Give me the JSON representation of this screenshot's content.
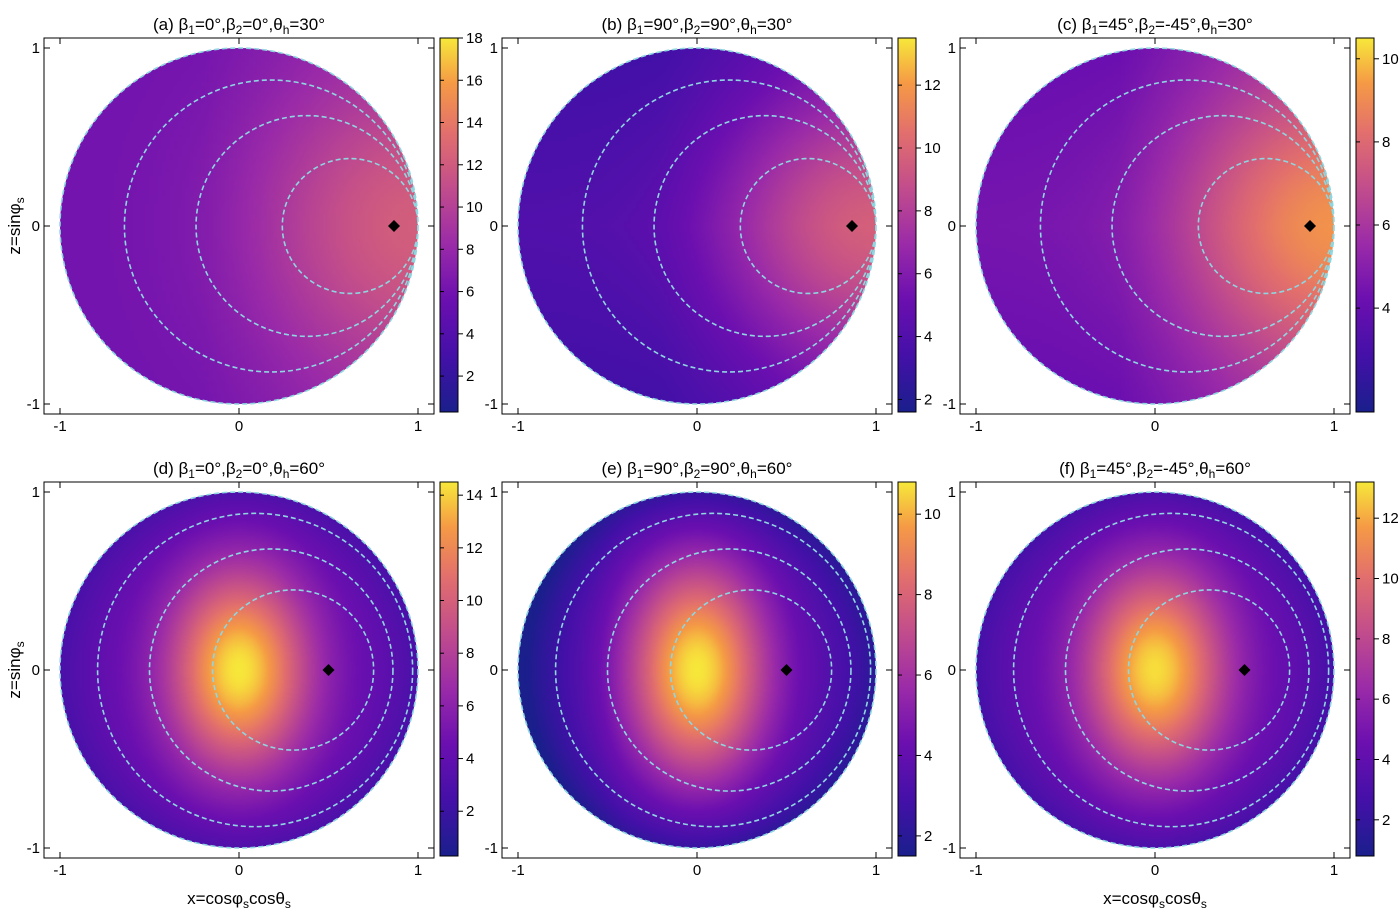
{
  "figure": {
    "ylabel": "z=sinφs",
    "xlabel": "x=cosφscosθs"
  },
  "chart_data": [
    {
      "type": "heatmap",
      "panel": "a",
      "title": "(a) β1=0°,β2=0°,θh=30°",
      "title_parts": {
        "prefix": "(a) β",
        "s1": "1",
        "m1": "=0°,β",
        "s2": "2",
        "m2": "=0°,θ",
        "s3": "h",
        "m3": "=30°"
      },
      "xlim": [
        -1,
        1
      ],
      "ylim": [
        -1,
        1
      ],
      "xticks": [
        -1,
        0,
        1
      ],
      "yticks": [
        -1,
        0,
        1
      ],
      "marker": {
        "x": 0.866,
        "z": 0
      },
      "contours": [
        {
          "cx": 0.621,
          "r": 0.379
        },
        {
          "cx": 0.38,
          "r": 0.62
        },
        {
          "cx": 0.18,
          "r": 0.82
        }
      ],
      "colorbar": {
        "min": 0.3,
        "max": 18,
        "ticks": [
          2,
          4,
          6,
          8,
          10,
          12,
          14,
          16,
          18
        ]
      },
      "field": {
        "bias": 6,
        "amp": 4.5,
        "peak": 0.35,
        "sigma": 0.6,
        "zs": 0.0
      }
    },
    {
      "type": "heatmap",
      "panel": "b",
      "title": "(b) β1=90°,β2=90°,θh=30°",
      "title_parts": {
        "prefix": "(b) β",
        "s1": "1",
        "m1": "=90°,β",
        "s2": "2",
        "m2": "=90°,θ",
        "s3": "h",
        "m3": "=30°"
      },
      "xlim": [
        -1,
        1
      ],
      "ylim": [
        -1,
        1
      ],
      "xticks": [
        -1,
        0,
        1
      ],
      "yticks": [
        -1,
        0,
        1
      ],
      "marker": {
        "x": 0.866,
        "z": 0
      },
      "contours": [
        {
          "cx": 0.621,
          "r": 0.379
        },
        {
          "cx": 0.38,
          "r": 0.62
        },
        {
          "cx": 0.18,
          "r": 0.82
        }
      ],
      "colorbar": {
        "min": 1.6,
        "max": 13.5,
        "ticks": [
          2,
          4,
          6,
          8,
          10,
          12
        ]
      },
      "field": {
        "bias": 4,
        "amp": 4.0,
        "peak": 0.3,
        "sigma": 0.55,
        "zs": 0.4
      }
    },
    {
      "type": "heatmap",
      "panel": "c",
      "title": "(c) β1=45°,β2=-45°,θh=30°",
      "title_parts": {
        "prefix": "(c) β",
        "s1": "1",
        "m1": "=45°,β",
        "s2": "2",
        "m2": "=-45°,θ",
        "s3": "h",
        "m3": "=30°"
      },
      "xlim": [
        -1,
        1
      ],
      "ylim": [
        -1,
        1
      ],
      "xticks": [
        -1,
        0,
        1
      ],
      "yticks": [
        -1,
        0,
        1
      ],
      "marker": {
        "x": 0.866,
        "z": 0
      },
      "contours": [
        {
          "cx": 0.621,
          "r": 0.379
        },
        {
          "cx": 0.38,
          "r": 0.62
        },
        {
          "cx": 0.18,
          "r": 0.82
        }
      ],
      "colorbar": {
        "min": 1.5,
        "max": 10.5,
        "ticks": [
          4,
          6,
          8,
          10
        ]
      },
      "field": {
        "bias": 4.5,
        "amp": 3.0,
        "peak": 0.3,
        "sigma": 0.55,
        "zs": 0.2
      }
    },
    {
      "type": "heatmap",
      "panel": "d",
      "title": "(d) β1=0°,β2=0°,θh=60°",
      "title_parts": {
        "prefix": "(d) β",
        "s1": "1",
        "m1": "=0°,β",
        "s2": "2",
        "m2": "=0°,θ",
        "s3": "h",
        "m3": "=60°"
      },
      "xlim": [
        -1,
        1
      ],
      "ylim": [
        -1,
        1
      ],
      "xticks": [
        -1,
        0,
        1
      ],
      "yticks": [
        -1,
        0,
        1
      ],
      "marker": {
        "x": 0.5,
        "z": 0
      },
      "contours": [
        {
          "cx": 0.302,
          "r": 0.45
        },
        {
          "cx": 0.18,
          "r": 0.68
        },
        {
          "cx": 0.09,
          "r": 0.88
        }
      ],
      "colorbar": {
        "min": 0.3,
        "max": 14.5,
        "ticks": [
          2,
          4,
          6,
          8,
          10,
          12,
          14
        ]
      },
      "field": {
        "hotspot": [
          0.0,
          0.0
        ],
        "sx": 0.38,
        "sz": 0.55,
        "base": 4.5,
        "amp": 10,
        "edge": 1.8
      }
    },
    {
      "type": "heatmap",
      "panel": "e",
      "title": "(e) β1=90°,β2=90°,θh=60°",
      "title_parts": {
        "prefix": "(e) β",
        "s1": "1",
        "m1": "=90°,β",
        "s2": "2",
        "m2": "=90°,θ",
        "s3": "h",
        "m3": "=60°"
      },
      "xlim": [
        -1,
        1
      ],
      "ylim": [
        -1,
        1
      ],
      "xticks": [
        -1,
        0,
        1
      ],
      "yticks": [
        -1,
        0,
        1
      ],
      "marker": {
        "x": 0.5,
        "z": 0
      },
      "contours": [
        {
          "cx": 0.302,
          "r": 0.45
        },
        {
          "cx": 0.18,
          "r": 0.68
        },
        {
          "cx": 0.09,
          "r": 0.88
        }
      ],
      "colorbar": {
        "min": 1.5,
        "max": 10.8,
        "ticks": [
          2,
          4,
          6,
          8,
          10
        ]
      },
      "field": {
        "hotspot": [
          0.0,
          0.0
        ],
        "sx": 0.38,
        "sz": 0.6,
        "base": 3.8,
        "amp": 7,
        "edge": 1.8,
        "left_dark": 1.5
      }
    },
    {
      "type": "heatmap",
      "panel": "f",
      "title": "(f) β1=45°,β2=-45°,θh=60°",
      "title_parts": {
        "prefix": "(f) β",
        "s1": "1",
        "m1": "=45°,β",
        "s2": "2",
        "m2": "=-45°,θ",
        "s3": "h",
        "m3": "=60°"
      },
      "xlim": [
        -1,
        1
      ],
      "ylim": [
        -1,
        1
      ],
      "xticks": [
        -1,
        0,
        1
      ],
      "yticks": [
        -1,
        0,
        1
      ],
      "marker": {
        "x": 0.5,
        "z": 0
      },
      "contours": [
        {
          "cx": 0.302,
          "r": 0.45
        },
        {
          "cx": 0.18,
          "r": 0.68
        },
        {
          "cx": 0.09,
          "r": 0.88
        }
      ],
      "colorbar": {
        "min": 0.8,
        "max": 13.2,
        "ticks": [
          2,
          4,
          6,
          8,
          10,
          12
        ]
      },
      "field": {
        "hotspot": [
          0.0,
          0.0
        ],
        "sx": 0.38,
        "sz": 0.55,
        "base": 4.5,
        "amp": 8.5,
        "edge": 1.8
      }
    }
  ]
}
